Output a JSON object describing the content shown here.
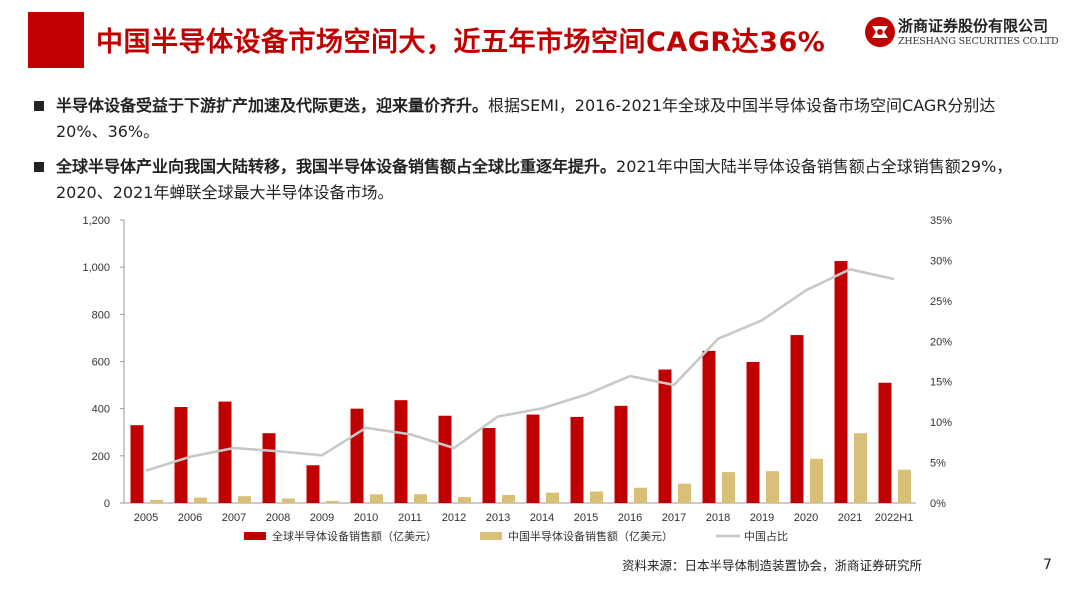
{
  "header": {
    "title": "中国半导体设备市场空间大，近五年市场空间CAGR达36%",
    "logo_cn": "浙商证券股份有限公司",
    "logo_en": "ZHESHANG SECURITIES CO.LTD",
    "accent_color": "#c00000"
  },
  "bullets": [
    {
      "bold": "半导体设备受益于下游扩产加速及代际更迭，迎来量价齐升。",
      "text": "根据SEMI，2016-2021年全球及中国半导体设备市场空间CAGR分别达20%、36%。"
    },
    {
      "bold": "全球半导体产业向我国大陆转移，我国半导体设备销售额占全球比重逐年提升。",
      "text": "2021年中国大陆半导体设备销售额占全球销售额29%，2020、2021年蝉联全球最大半导体设备市场。"
    }
  ],
  "chart_data": {
    "type": "bar",
    "categories": [
      "2005",
      "2006",
      "2007",
      "2008",
      "2009",
      "2010",
      "2011",
      "2012",
      "2013",
      "2014",
      "2015",
      "2016",
      "2017",
      "2018",
      "2019",
      "2020",
      "2021",
      "2022H1"
    ],
    "series": [
      {
        "name": "全球半导体设备销售额（亿美元）",
        "type": "bar",
        "axis": "left",
        "color": "#c00000",
        "values": [
          330,
          407,
          430,
          296,
          160,
          400,
          436,
          370,
          318,
          375,
          365,
          412,
          566,
          645,
          598,
          712,
          1026,
          510
        ]
      },
      {
        "name": "中国半导体设备销售额（亿美元）",
        "type": "bar",
        "axis": "left",
        "color": "#d9bf77",
        "values": [
          13,
          23,
          29,
          19,
          9,
          37,
          37,
          25,
          34,
          44,
          49,
          65,
          82,
          131,
          135,
          187,
          296,
          141
        ]
      },
      {
        "name": "中国占比",
        "type": "line",
        "axis": "right",
        "color": "#c8c8c8",
        "values": [
          0.04,
          0.057,
          0.068,
          0.064,
          0.059,
          0.093,
          0.085,
          0.068,
          0.107,
          0.117,
          0.134,
          0.157,
          0.146,
          0.203,
          0.226,
          0.263,
          0.289,
          0.277
        ]
      }
    ],
    "left_axis": {
      "ylim": [
        0,
        1200
      ],
      "ticks": [
        "0",
        "200",
        "400",
        "600",
        "800",
        "1,000",
        "1,200"
      ],
      "tick_values": [
        0,
        200,
        400,
        600,
        800,
        1000,
        1200
      ]
    },
    "right_axis": {
      "ylim": [
        0,
        0.35
      ],
      "ticks": [
        "0%",
        "5%",
        "10%",
        "15%",
        "20%",
        "25%",
        "30%",
        "35%"
      ],
      "tick_values": [
        0,
        0.05,
        0.1,
        0.15,
        0.2,
        0.25,
        0.3,
        0.35
      ]
    },
    "legend_placement": "bottom",
    "grid": false
  },
  "footer": {
    "source": "资料来源：日本半导体制造装置协会，浙商证券研究所",
    "page_number": "7"
  }
}
